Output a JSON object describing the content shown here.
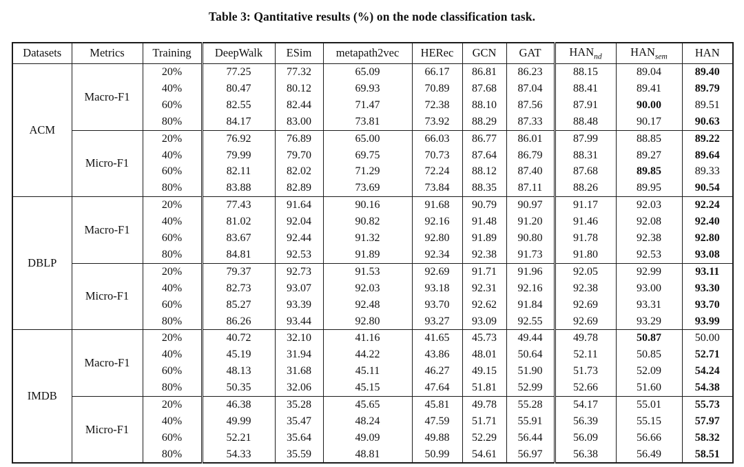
{
  "title": "Table 3: Qantitative results (%) on the node classification task.",
  "table": {
    "columns": [
      {
        "label": "Datasets"
      },
      {
        "label": "Metrics"
      },
      {
        "label": "Training"
      },
      {
        "label": "DeepWalk"
      },
      {
        "label": "ESim"
      },
      {
        "label": "metapath2vec"
      },
      {
        "label": "HERec"
      },
      {
        "label": "GCN"
      },
      {
        "label": "GAT"
      },
      {
        "label": "HAN",
        "sub": "nd"
      },
      {
        "label": "HAN",
        "sub": "sem"
      },
      {
        "label": "HAN"
      }
    ],
    "groups": [
      {
        "dataset": "ACM",
        "metrics": [
          {
            "name": "Macro-F1",
            "rows": [
              {
                "training": "20%",
                "values": [
                  "77.25",
                  "77.32",
                  "65.09",
                  "66.17",
                  "86.81",
                  "86.23",
                  "88.15",
                  "89.04",
                  "89.40"
                ],
                "bold": [
                  8
                ]
              },
              {
                "training": "40%",
                "values": [
                  "80.47",
                  "80.12",
                  "69.93",
                  "70.89",
                  "87.68",
                  "87.04",
                  "88.41",
                  "89.41",
                  "89.79"
                ],
                "bold": [
                  8
                ]
              },
              {
                "training": "60%",
                "values": [
                  "82.55",
                  "82.44",
                  "71.47",
                  "72.38",
                  "88.10",
                  "87.56",
                  "87.91",
                  "90.00",
                  "89.51"
                ],
                "bold": [
                  7
                ]
              },
              {
                "training": "80%",
                "values": [
                  "84.17",
                  "83.00",
                  "73.81",
                  "73.92",
                  "88.29",
                  "87.33",
                  "88.48",
                  "90.17",
                  "90.63"
                ],
                "bold": [
                  8
                ]
              }
            ]
          },
          {
            "name": "Micro-F1",
            "rows": [
              {
                "training": "20%",
                "values": [
                  "76.92",
                  "76.89",
                  "65.00",
                  "66.03",
                  "86.77",
                  "86.01",
                  "87.99",
                  "88.85",
                  "89.22"
                ],
                "bold": [
                  8
                ]
              },
              {
                "training": "40%",
                "values": [
                  "79.99",
                  "79.70",
                  "69.75",
                  "70.73",
                  "87.64",
                  "86.79",
                  "88.31",
                  "89.27",
                  "89.64"
                ],
                "bold": [
                  8
                ]
              },
              {
                "training": "60%",
                "values": [
                  "82.11",
                  "82.02",
                  "71.29",
                  "72.24",
                  "88.12",
                  "87.40",
                  "87.68",
                  "89.85",
                  "89.33"
                ],
                "bold": [
                  7
                ]
              },
              {
                "training": "80%",
                "values": [
                  "83.88",
                  "82.89",
                  "73.69",
                  "73.84",
                  "88.35",
                  "87.11",
                  "88.26",
                  "89.95",
                  "90.54"
                ],
                "bold": [
                  8
                ]
              }
            ]
          }
        ]
      },
      {
        "dataset": "DBLP",
        "metrics": [
          {
            "name": "Macro-F1",
            "rows": [
              {
                "training": "20%",
                "values": [
                  "77.43",
                  "91.64",
                  "90.16",
                  "91.68",
                  "90.79",
                  "90.97",
                  "91.17",
                  "92.03",
                  "92.24"
                ],
                "bold": [
                  8
                ]
              },
              {
                "training": "40%",
                "values": [
                  "81.02",
                  "92.04",
                  "90.82",
                  "92.16",
                  "91.48",
                  "91.20",
                  "91.46",
                  "92.08",
                  "92.40"
                ],
                "bold": [
                  8
                ]
              },
              {
                "training": "60%",
                "values": [
                  "83.67",
                  "92.44",
                  "91.32",
                  "92.80",
                  "91.89",
                  "90.80",
                  "91.78",
                  "92.38",
                  "92.80"
                ],
                "bold": [
                  8
                ]
              },
              {
                "training": "80%",
                "values": [
                  "84.81",
                  "92.53",
                  "91.89",
                  "92.34",
                  "92.38",
                  "91.73",
                  "91.80",
                  "92.53",
                  "93.08"
                ],
                "bold": [
                  8
                ]
              }
            ]
          },
          {
            "name": "Micro-F1",
            "rows": [
              {
                "training": "20%",
                "values": [
                  "79.37",
                  "92.73",
                  "91.53",
                  "92.69",
                  "91.71",
                  "91.96",
                  "92.05",
                  "92.99",
                  "93.11"
                ],
                "bold": [
                  8
                ]
              },
              {
                "training": "40%",
                "values": [
                  "82.73",
                  "93.07",
                  "92.03",
                  "93.18",
                  "92.31",
                  "92.16",
                  "92.38",
                  "93.00",
                  "93.30"
                ],
                "bold": [
                  8
                ]
              },
              {
                "training": "60%",
                "values": [
                  "85.27",
                  "93.39",
                  "92.48",
                  "93.70",
                  "92.62",
                  "91.84",
                  "92.69",
                  "93.31",
                  "93.70"
                ],
                "bold": [
                  8
                ]
              },
              {
                "training": "80%",
                "values": [
                  "86.26",
                  "93.44",
                  "92.80",
                  "93.27",
                  "93.09",
                  "92.55",
                  "92.69",
                  "93.29",
                  "93.99"
                ],
                "bold": [
                  8
                ]
              }
            ]
          }
        ]
      },
      {
        "dataset": "IMDB",
        "metrics": [
          {
            "name": "Macro-F1",
            "rows": [
              {
                "training": "20%",
                "values": [
                  "40.72",
                  "32.10",
                  "41.16",
                  "41.65",
                  "45.73",
                  "49.44",
                  "49.78",
                  "50.87",
                  "50.00"
                ],
                "bold": [
                  7
                ]
              },
              {
                "training": "40%",
                "values": [
                  "45.19",
                  "31.94",
                  "44.22",
                  "43.86",
                  "48.01",
                  "50.64",
                  "52.11",
                  "50.85",
                  "52.71"
                ],
                "bold": [
                  8
                ]
              },
              {
                "training": "60%",
                "values": [
                  "48.13",
                  "31.68",
                  "45.11",
                  "46.27",
                  "49.15",
                  "51.90",
                  "51.73",
                  "52.09",
                  "54.24"
                ],
                "bold": [
                  8
                ]
              },
              {
                "training": "80%",
                "values": [
                  "50.35",
                  "32.06",
                  "45.15",
                  "47.64",
                  "51.81",
                  "52.99",
                  "52.66",
                  "51.60",
                  "54.38"
                ],
                "bold": [
                  8
                ]
              }
            ]
          },
          {
            "name": "Micro-F1",
            "rows": [
              {
                "training": "20%",
                "values": [
                  "46.38",
                  "35.28",
                  "45.65",
                  "45.81",
                  "49.78",
                  "55.28",
                  "54.17",
                  "55.01",
                  "55.73"
                ],
                "bold": [
                  8
                ]
              },
              {
                "training": "40%",
                "values": [
                  "49.99",
                  "35.47",
                  "48.24",
                  "47.59",
                  "51.71",
                  "55.91",
                  "56.39",
                  "55.15",
                  "57.97"
                ],
                "bold": [
                  8
                ]
              },
              {
                "training": "60%",
                "values": [
                  "52.21",
                  "35.64",
                  "49.09",
                  "49.88",
                  "52.29",
                  "56.44",
                  "56.09",
                  "56.66",
                  "58.32"
                ],
                "bold": [
                  8
                ]
              },
              {
                "training": "80%",
                "values": [
                  "54.33",
                  "35.59",
                  "48.81",
                  "50.99",
                  "54.61",
                  "56.97",
                  "56.38",
                  "56.49",
                  "58.51"
                ],
                "bold": [
                  8
                ]
              }
            ]
          }
        ]
      }
    ]
  }
}
